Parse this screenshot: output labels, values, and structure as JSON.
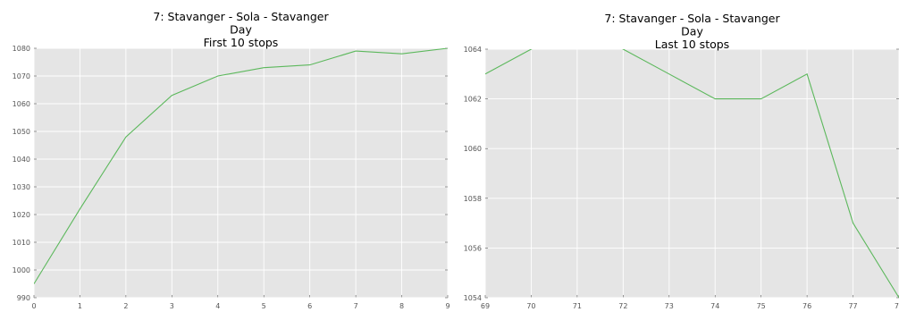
{
  "chart_data": [
    {
      "type": "line",
      "title": "7: Stavanger - Sola - Stavanger",
      "subtitle": "Day",
      "subtitle2": "First 10 stops",
      "xlabel": "",
      "ylabel": "",
      "x": [
        0,
        1,
        2,
        3,
        4,
        5,
        6,
        7,
        8,
        9
      ],
      "xticks": [
        "0",
        "1",
        "2",
        "3",
        "4",
        "5",
        "6",
        "7",
        "8",
        "9"
      ],
      "xlim": [
        0,
        9
      ],
      "ylim": [
        990,
        1080
      ],
      "yticks": [
        "990",
        "1000",
        "1010",
        "1020",
        "1030",
        "1040",
        "1050",
        "1060",
        "1070",
        "1080"
      ],
      "series": [
        {
          "values": [
            995,
            1022,
            1048,
            1063,
            1070,
            1073,
            1074,
            1079,
            1078,
            1080
          ]
        }
      ],
      "line_color": "#5cb85c",
      "background": "#e5e5e5",
      "grid": true
    },
    {
      "type": "line",
      "title": "7: Stavanger - Sola - Stavanger",
      "subtitle": "Day",
      "subtitle2": "Last 10 stops",
      "xlabel": "",
      "ylabel": "",
      "x": [
        69,
        70,
        71,
        72,
        73,
        74,
        75,
        76,
        77,
        78
      ],
      "xticks": [
        "69",
        "70",
        "71",
        "72",
        "73",
        "74",
        "75",
        "76",
        "77",
        "78"
      ],
      "xlim": [
        69,
        78
      ],
      "ylim": [
        1054,
        1064
      ],
      "yticks": [
        "1054",
        "1056",
        "1058",
        "1060",
        "1062",
        "1064"
      ],
      "series": [
        {
          "values": [
            1063,
            1064,
            1065,
            1064,
            1063,
            1062,
            1062,
            1063,
            1057,
            1054
          ]
        }
      ],
      "line_color": "#5cb85c",
      "background": "#e5e5e5",
      "grid": true
    }
  ]
}
